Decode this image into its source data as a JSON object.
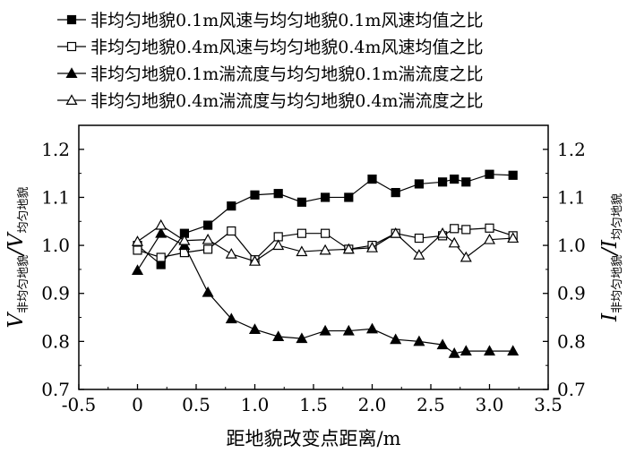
{
  "chart_data": {
    "type": "line",
    "xlabel": "距地貌改变点距离/m",
    "ylabel_left": {
      "main": "V",
      "sub1": "非均匀地貌",
      "sep": "/V",
      "sub2": "均匀地貌"
    },
    "ylabel_right": {
      "main": "I",
      "sub1": "非均匀地貌",
      "sep": "/I",
      "sub2": "均匀地貌"
    },
    "xlim": [
      -0.5,
      3.5
    ],
    "ylim": [
      0.7,
      1.25
    ],
    "xticks": [
      "-0.5",
      "0",
      "0.5",
      "1.0",
      "1.5",
      "2.0",
      "2.5",
      "3.0",
      "3.5"
    ],
    "yticks": [
      "0.7",
      "0.8",
      "0.9",
      "1.0",
      "1.1",
      "1.2"
    ],
    "legend_position": "top",
    "series": [
      {
        "name": "非均匀地貌0.1m风速与均匀地貌0.1m风速均值之比",
        "marker": "square-filled",
        "x": [
          0,
          0.2,
          0.4,
          0.6,
          0.8,
          1.0,
          1.2,
          1.4,
          1.6,
          1.8,
          2.0,
          2.2,
          2.4,
          2.6,
          2.7,
          2.8,
          3.0,
          3.2
        ],
        "y": [
          1.0,
          0.96,
          1.025,
          1.042,
          1.082,
          1.105,
          1.108,
          1.09,
          1.1,
          1.1,
          1.138,
          1.11,
          1.128,
          1.132,
          1.138,
          1.132,
          1.148,
          1.146
        ]
      },
      {
        "name": "非均匀地貌0.4m风速与均匀地貌0.4m风速均值之比",
        "marker": "square-open",
        "x": [
          0,
          0.2,
          0.4,
          0.6,
          0.8,
          1.0,
          1.2,
          1.4,
          1.6,
          1.8,
          2.0,
          2.2,
          2.4,
          2.6,
          2.7,
          2.8,
          3.0,
          3.2
        ],
        "y": [
          0.99,
          0.975,
          0.985,
          0.992,
          1.03,
          0.97,
          1.018,
          1.025,
          1.025,
          0.992,
          1.0,
          1.025,
          1.015,
          1.02,
          1.035,
          1.033,
          1.036,
          1.02
        ]
      },
      {
        "name": "非均匀地貌0.1m湍流度与均匀地貌0.1m湍流度之比",
        "marker": "triangle-filled",
        "x": [
          0,
          0.2,
          0.4,
          0.6,
          0.8,
          1.0,
          1.2,
          1.4,
          1.6,
          1.8,
          2.0,
          2.2,
          2.4,
          2.6,
          2.7,
          2.8,
          3.0,
          3.2
        ],
        "y": [
          0.948,
          1.025,
          1.0,
          0.902,
          0.847,
          0.825,
          0.81,
          0.806,
          0.822,
          0.822,
          0.826,
          0.804,
          0.8,
          0.793,
          0.775,
          0.78,
          0.78,
          0.78
        ]
      },
      {
        "name": "非均匀地貌0.4m湍流度与均匀地貌0.4m湍流度之比",
        "marker": "triangle-open",
        "x": [
          0,
          0.2,
          0.4,
          0.6,
          0.8,
          1.0,
          1.2,
          1.4,
          1.6,
          1.8,
          2.0,
          2.2,
          2.4,
          2.6,
          2.7,
          2.8,
          3.0,
          3.2
        ],
        "y": [
          1.008,
          1.042,
          1.01,
          1.012,
          0.982,
          0.967,
          1.0,
          0.987,
          0.99,
          0.992,
          0.995,
          1.025,
          0.98,
          1.025,
          1.005,
          0.975,
          1.012,
          1.015
        ]
      }
    ]
  }
}
